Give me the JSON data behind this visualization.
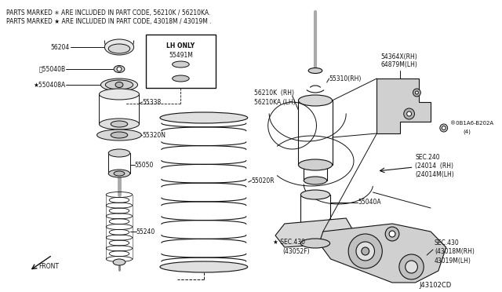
{
  "background_color": "#ffffff",
  "figsize": [
    6.4,
    3.72
  ],
  "dpi": 100,
  "title_lines": [
    "PARTS MARKED ✳ ARE INCLUDED IN PART CODE, 56210K / 56210KA.",
    "PARTS MARKED ★ ARE INCLUDED IN PART CODE, 43018M / 43019M ."
  ],
  "diagram_id": "J43102CD",
  "lc": "#111111"
}
